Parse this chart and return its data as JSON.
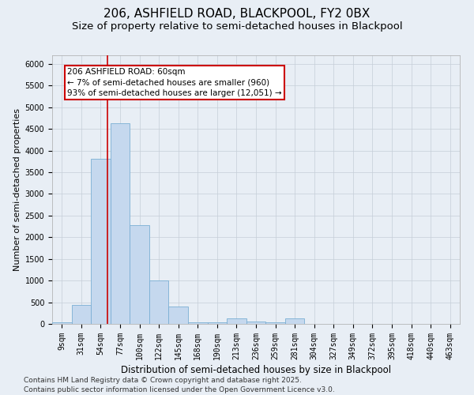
{
  "title1": "206, ASHFIELD ROAD, BLACKPOOL, FY2 0BX",
  "title2": "Size of property relative to semi-detached houses in Blackpool",
  "xlabel": "Distribution of semi-detached houses by size in Blackpool",
  "ylabel": "Number of semi-detached properties",
  "categories": [
    "9sqm",
    "31sqm",
    "54sqm",
    "77sqm",
    "100sqm",
    "122sqm",
    "145sqm",
    "168sqm",
    "190sqm",
    "213sqm",
    "236sqm",
    "259sqm",
    "281sqm",
    "304sqm",
    "327sqm",
    "349sqm",
    "372sqm",
    "395sqm",
    "418sqm",
    "440sqm",
    "463sqm"
  ],
  "values": [
    30,
    430,
    3820,
    4640,
    2280,
    1000,
    400,
    30,
    30,
    120,
    50,
    30,
    120,
    0,
    0,
    0,
    0,
    0,
    0,
    0,
    0
  ],
  "bar_color": "#c5d8ee",
  "bar_edge_color": "#7aafd4",
  "annotation_text": "206 ASHFIELD ROAD: 60sqm\n← 7% of semi-detached houses are smaller (960)\n93% of semi-detached houses are larger (12,051) →",
  "annotation_box_color": "#ffffff",
  "annotation_box_edge": "#cc0000",
  "vline_color": "#cc0000",
  "vline_x_idx": 2.0,
  "ylim_max": 6200,
  "yticks": [
    0,
    500,
    1000,
    1500,
    2000,
    2500,
    3000,
    3500,
    4000,
    4500,
    5000,
    5500,
    6000
  ],
  "bg_color": "#e8eef5",
  "footer": "Contains HM Land Registry data © Crown copyright and database right 2025.\nContains public sector information licensed under the Open Government Licence v3.0.",
  "title1_fontsize": 11,
  "title2_fontsize": 9.5,
  "xlabel_fontsize": 8.5,
  "ylabel_fontsize": 8,
  "tick_fontsize": 7,
  "footer_fontsize": 6.5,
  "annot_fontsize": 7.5
}
